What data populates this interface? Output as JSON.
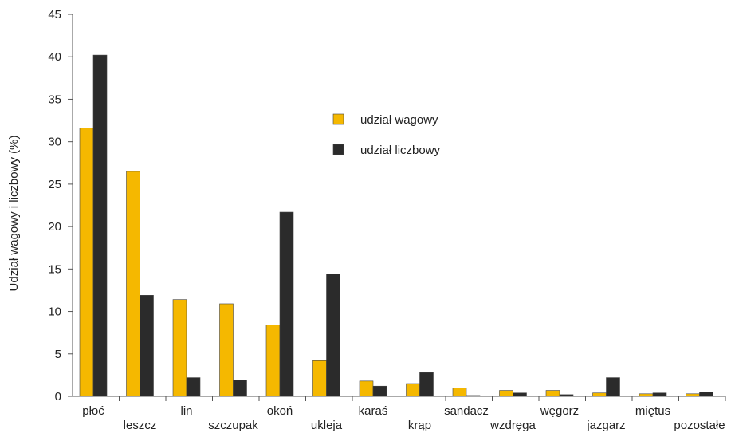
{
  "chart_data": {
    "type": "bar",
    "title": "",
    "xlabel": "",
    "ylabel": "Udział wagowy i liczbowy (%)",
    "ylim": [
      0,
      45
    ],
    "yticks": [
      0,
      5,
      10,
      15,
      20,
      25,
      30,
      35,
      40,
      45
    ],
    "grid": false,
    "legend_position": "top-center",
    "categories": [
      "płoć",
      "leszcz",
      "lin",
      "szczupak",
      "okoń",
      "ukleja",
      "karaś",
      "krąp",
      "sandacz",
      "wzdręga",
      "węgorz",
      "jazgarz",
      "miętus",
      "pozostałe"
    ],
    "series": [
      {
        "name": "udział wagowy",
        "color": "#F5B800",
        "values": [
          31.6,
          26.5,
          11.4,
          10.9,
          8.4,
          4.2,
          1.8,
          1.5,
          1.0,
          0.7,
          0.7,
          0.4,
          0.3,
          0.3
        ]
      },
      {
        "name": "udział liczbowy",
        "color": "#2B2B2B",
        "values": [
          40.2,
          11.9,
          2.2,
          1.9,
          21.7,
          14.4,
          1.2,
          2.8,
          0.1,
          0.4,
          0.2,
          2.2,
          0.4,
          0.5
        ]
      }
    ]
  }
}
